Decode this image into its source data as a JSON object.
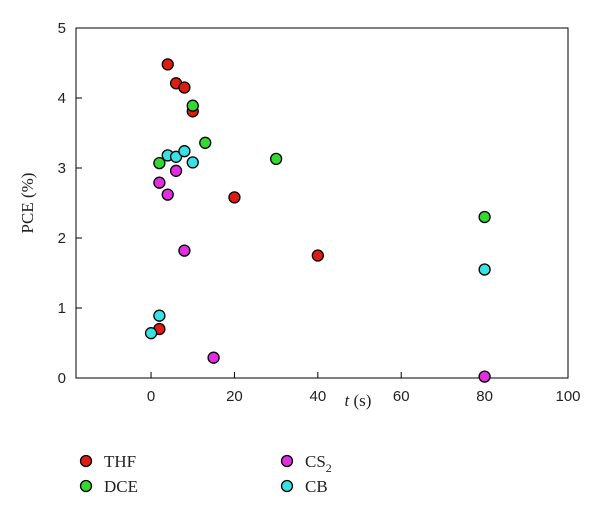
{
  "chart_data": {
    "type": "scatter",
    "xlabel": {
      "var": "t",
      "unit": " (s)"
    },
    "ylabel": "PCE (%)",
    "xlim": [
      -18,
      100
    ],
    "ylim": [
      0,
      5
    ],
    "xticks": [
      "0",
      "20",
      "40",
      "60",
      "80",
      "100"
    ],
    "xtick_values": [
      0,
      20,
      40,
      60,
      80,
      100
    ],
    "yticks": [
      "0",
      "1",
      "2",
      "3",
      "4",
      "5"
    ],
    "ytick_values": [
      0,
      1,
      2,
      3,
      4,
      5
    ],
    "grid": false,
    "legend_position": "bottom",
    "series": [
      {
        "name": "THF",
        "name_base": "THF",
        "name_sub": "",
        "color": "#dd1c12",
        "points": [
          [
            4,
            4.48
          ],
          [
            6,
            4.21
          ],
          [
            8,
            4.15
          ],
          [
            10,
            3.81
          ],
          [
            20,
            2.58
          ],
          [
            40,
            1.75
          ],
          [
            2,
            0.7
          ]
        ]
      },
      {
        "name": "DCE",
        "name_base": "DCE",
        "name_sub": "",
        "color": "#34d92f",
        "points": [
          [
            10,
            3.89
          ],
          [
            13,
            3.36
          ],
          [
            2,
            3.07
          ],
          [
            30,
            3.13
          ],
          [
            80,
            2.3
          ]
        ]
      },
      {
        "name": "CS2",
        "name_base": "CS",
        "name_sub": "2",
        "color": "#e02ee0",
        "points": [
          [
            6,
            2.96
          ],
          [
            2,
            2.79
          ],
          [
            4,
            2.62
          ],
          [
            8,
            1.82
          ],
          [
            15,
            0.29
          ],
          [
            80,
            0.02
          ]
        ]
      },
      {
        "name": "CB",
        "name_base": "CB",
        "name_sub": "",
        "color": "#38e1e4",
        "points": [
          [
            4,
            3.18
          ],
          [
            6,
            3.16
          ],
          [
            8,
            3.24
          ],
          [
            10,
            3.08
          ],
          [
            2,
            0.89
          ],
          [
            0,
            0.64
          ],
          [
            80,
            1.55
          ]
        ]
      }
    ]
  }
}
